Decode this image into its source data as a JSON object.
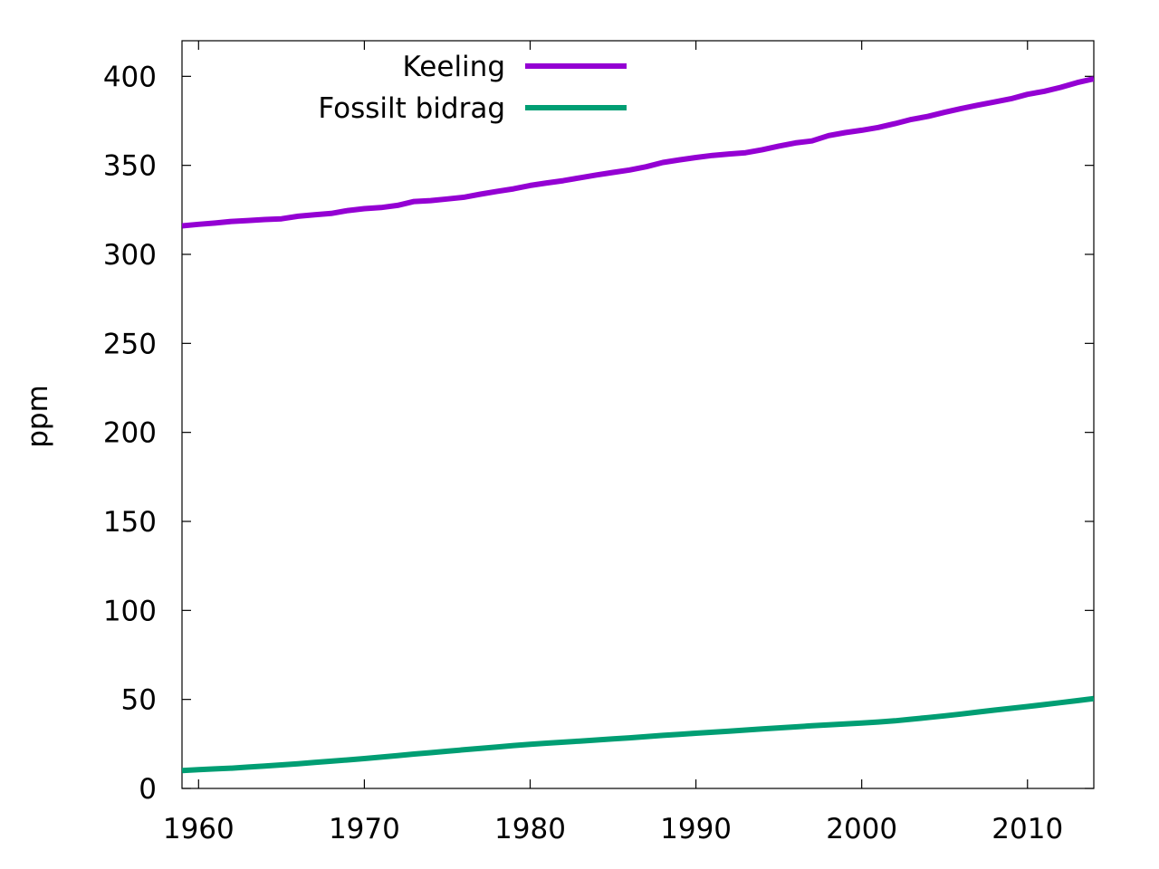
{
  "chart_data": {
    "type": "line",
    "title": "",
    "xlabel": "",
    "ylabel": "ppm",
    "xlim": [
      1959,
      2014
    ],
    "ylim": [
      0,
      420
    ],
    "xticks": [
      1960,
      1970,
      1980,
      1990,
      2000,
      2010
    ],
    "yticks": [
      0,
      50,
      100,
      150,
      200,
      250,
      300,
      350,
      400
    ],
    "grid": false,
    "legend_position": "top-center",
    "x": [
      1959,
      1960,
      1961,
      1962,
      1963,
      1964,
      1965,
      1966,
      1967,
      1968,
      1969,
      1970,
      1971,
      1972,
      1973,
      1974,
      1975,
      1976,
      1977,
      1978,
      1979,
      1980,
      1981,
      1982,
      1983,
      1984,
      1985,
      1986,
      1987,
      1988,
      1989,
      1990,
      1991,
      1992,
      1993,
      1994,
      1995,
      1996,
      1997,
      1998,
      1999,
      2000,
      2001,
      2002,
      2003,
      2004,
      2005,
      2006,
      2007,
      2008,
      2009,
      2010,
      2011,
      2012,
      2013,
      2014
    ],
    "series": [
      {
        "name": "Keeling",
        "color": "#9400d3",
        "values": [
          316.0,
          316.9,
          317.6,
          318.5,
          319.0,
          319.6,
          320.0,
          321.4,
          322.2,
          323.0,
          324.6,
          325.7,
          326.3,
          327.5,
          329.7,
          330.2,
          331.1,
          332.1,
          333.8,
          335.4,
          336.8,
          338.7,
          340.1,
          341.4,
          343.0,
          344.6,
          346.0,
          347.4,
          349.2,
          351.6,
          353.1,
          354.4,
          355.6,
          356.4,
          357.1,
          358.8,
          360.8,
          362.6,
          363.7,
          366.7,
          368.4,
          369.7,
          371.3,
          373.4,
          375.8,
          377.5,
          379.8,
          381.9,
          383.8,
          385.6,
          387.4,
          389.9,
          391.6,
          393.8,
          396.5,
          398.6
        ]
      },
      {
        "name": "Fossilt bidrag",
        "color": "#009e73",
        "values": [
          10.0,
          10.6,
          11.0,
          11.4,
          12.0,
          12.6,
          13.2,
          13.9,
          14.6,
          15.3,
          16.0,
          16.8,
          17.6,
          18.4,
          19.3,
          20.1,
          20.9,
          21.7,
          22.5,
          23.3,
          24.1,
          24.8,
          25.4,
          26.0,
          26.6,
          27.2,
          27.8,
          28.4,
          29.1,
          29.8,
          30.4,
          31.0,
          31.6,
          32.2,
          32.8,
          33.4,
          34.0,
          34.6,
          35.2,
          35.7,
          36.2,
          36.7,
          37.3,
          38.0,
          38.9,
          39.8,
          40.8,
          41.8,
          42.9,
          44.0,
          45.0,
          46.0,
          47.1,
          48.2,
          49.3,
          50.5
        ]
      }
    ]
  }
}
